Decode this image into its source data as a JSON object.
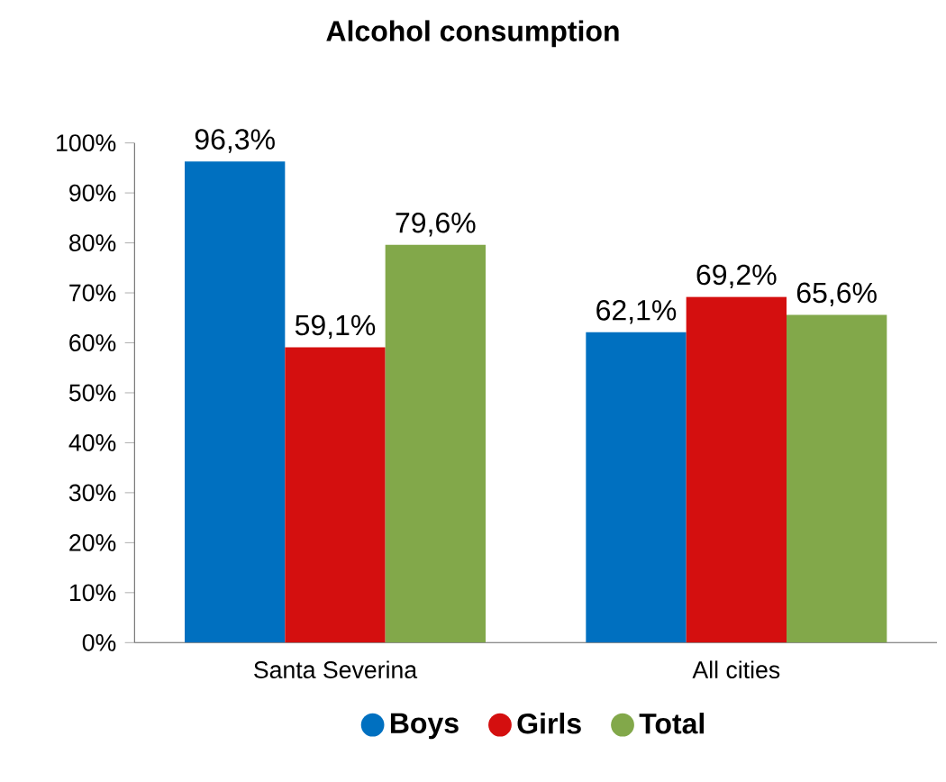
{
  "chart_data": {
    "type": "bar",
    "title": "Alcohol consumption",
    "categories": [
      "Santa Severina",
      "All cities"
    ],
    "series": [
      {
        "name": "Boys",
        "color": "#0070c0",
        "values": [
          96.3,
          62.1
        ],
        "value_labels": [
          "96,3%",
          "62,1%"
        ]
      },
      {
        "name": "Girls",
        "color": "#d40f0f",
        "values": [
          59.1,
          69.2
        ],
        "value_labels": [
          "59,1%",
          "69,2%"
        ]
      },
      {
        "name": "Total",
        "color": "#82a84a",
        "values": [
          79.6,
          65.6
        ],
        "value_labels": [
          "79,6%",
          "65,6%"
        ]
      }
    ],
    "ylim": [
      0,
      100
    ],
    "yticks": [
      {
        "value": 0,
        "label": "0%"
      },
      {
        "value": 10,
        "label": "10%"
      },
      {
        "value": 20,
        "label": "20%"
      },
      {
        "value": 30,
        "label": "30%"
      },
      {
        "value": 40,
        "label": "40%"
      },
      {
        "value": 50,
        "label": "50%"
      },
      {
        "value": 60,
        "label": "60%"
      },
      {
        "value": 70,
        "label": "70%"
      },
      {
        "value": 80,
        "label": "80%"
      },
      {
        "value": 90,
        "label": "90%"
      },
      {
        "value": 100,
        "label": "100%"
      }
    ],
    "grid": false,
    "legend": "bottom"
  }
}
